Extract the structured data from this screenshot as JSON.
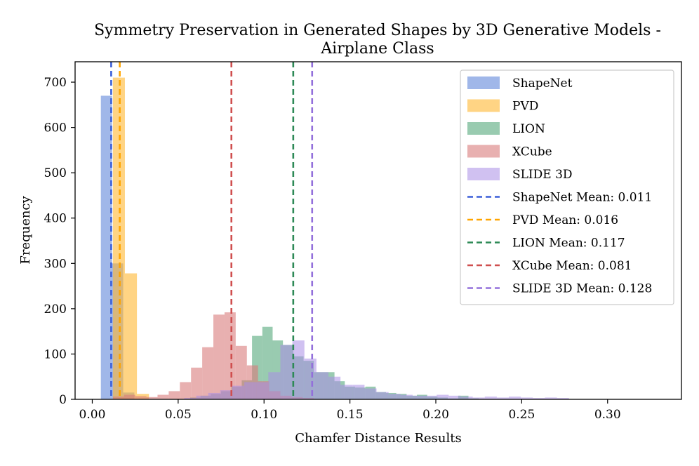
{
  "chart_data": {
    "type": "histogram",
    "title": "Symmetry Preservation in Generated Shapes by 3D Generative Models -",
    "title_line2": "Airplane Class",
    "xlabel": "Chamfer Distance Results",
    "ylabel": "Frequency",
    "xlim": [
      -0.01,
      0.343
    ],
    "ylim": [
      0,
      745
    ],
    "xticks": [
      0.0,
      0.05,
      0.1,
      0.15,
      0.2,
      0.25,
      0.3
    ],
    "xtick_labels": [
      "0.00",
      "0.05",
      "0.10",
      "0.15",
      "0.20",
      "0.25",
      "0.30"
    ],
    "yticks": [
      0,
      100,
      200,
      300,
      400,
      500,
      600,
      700
    ],
    "ytick_labels": [
      "0",
      "100",
      "200",
      "300",
      "400",
      "500",
      "600",
      "700"
    ],
    "legend_position": "top-right",
    "series": [
      {
        "name": "ShapeNet",
        "color": "#7b9be0",
        "alpha": 0.72,
        "bins": [
          {
            "x0": 0.005,
            "x1": 0.0115,
            "count": 670
          },
          {
            "x0": 0.0115,
            "x1": 0.018,
            "count": 300
          },
          {
            "x0": 0.018,
            "x1": 0.0245,
            "count": 15
          }
        ]
      },
      {
        "name": "PVD",
        "color": "#ffb732",
        "alpha": 0.6,
        "bins": [
          {
            "x0": 0.012,
            "x1": 0.019,
            "count": 710
          },
          {
            "x0": 0.019,
            "x1": 0.026,
            "count": 278
          },
          {
            "x0": 0.026,
            "x1": 0.033,
            "count": 12
          }
        ]
      },
      {
        "name": "LION",
        "color": "#45a170",
        "alpha": 0.55,
        "bins": [
          {
            "x0": 0.057,
            "x1": 0.063,
            "count": 4
          },
          {
            "x0": 0.063,
            "x1": 0.069,
            "count": 8
          },
          {
            "x0": 0.069,
            "x1": 0.075,
            "count": 12
          },
          {
            "x0": 0.075,
            "x1": 0.081,
            "count": 18
          },
          {
            "x0": 0.081,
            "x1": 0.087,
            "count": 28
          },
          {
            "x0": 0.087,
            "x1": 0.093,
            "count": 42
          },
          {
            "x0": 0.093,
            "x1": 0.099,
            "count": 140
          },
          {
            "x0": 0.099,
            "x1": 0.105,
            "count": 160
          },
          {
            "x0": 0.105,
            "x1": 0.111,
            "count": 130
          },
          {
            "x0": 0.111,
            "x1": 0.117,
            "count": 120
          },
          {
            "x0": 0.117,
            "x1": 0.123,
            "count": 95
          },
          {
            "x0": 0.123,
            "x1": 0.129,
            "count": 85
          },
          {
            "x0": 0.129,
            "x1": 0.135,
            "count": 60
          },
          {
            "x0": 0.135,
            "x1": 0.141,
            "count": 60
          },
          {
            "x0": 0.141,
            "x1": 0.147,
            "count": 40
          },
          {
            "x0": 0.147,
            "x1": 0.153,
            "count": 28
          },
          {
            "x0": 0.153,
            "x1": 0.159,
            "count": 26
          },
          {
            "x0": 0.159,
            "x1": 0.165,
            "count": 28
          },
          {
            "x0": 0.165,
            "x1": 0.171,
            "count": 16
          },
          {
            "x0": 0.171,
            "x1": 0.177,
            "count": 14
          },
          {
            "x0": 0.177,
            "x1": 0.183,
            "count": 12
          },
          {
            "x0": 0.183,
            "x1": 0.189,
            "count": 8
          },
          {
            "x0": 0.189,
            "x1": 0.195,
            "count": 10
          },
          {
            "x0": 0.195,
            "x1": 0.201,
            "count": 6
          },
          {
            "x0": 0.201,
            "x1": 0.207,
            "count": 4
          },
          {
            "x0": 0.207,
            "x1": 0.213,
            "count": 2
          },
          {
            "x0": 0.213,
            "x1": 0.219,
            "count": 8
          },
          {
            "x0": 0.219,
            "x1": 0.225,
            "count": 2
          }
        ]
      },
      {
        "name": "XCube",
        "color": "#d97c7c",
        "alpha": 0.6,
        "bins": [
          {
            "x0": 0.012,
            "x1": 0.0185,
            "count": 6
          },
          {
            "x0": 0.0185,
            "x1": 0.025,
            "count": 10
          },
          {
            "x0": 0.025,
            "x1": 0.0315,
            "count": 7
          },
          {
            "x0": 0.0315,
            "x1": 0.038,
            "count": 5
          },
          {
            "x0": 0.038,
            "x1": 0.0445,
            "count": 10
          },
          {
            "x0": 0.0445,
            "x1": 0.051,
            "count": 18
          },
          {
            "x0": 0.051,
            "x1": 0.0575,
            "count": 38
          },
          {
            "x0": 0.0575,
            "x1": 0.064,
            "count": 70
          },
          {
            "x0": 0.064,
            "x1": 0.0705,
            "count": 115
          },
          {
            "x0": 0.0705,
            "x1": 0.077,
            "count": 187
          },
          {
            "x0": 0.077,
            "x1": 0.0835,
            "count": 192
          },
          {
            "x0": 0.0835,
            "x1": 0.09,
            "count": 118
          },
          {
            "x0": 0.09,
            "x1": 0.0965,
            "count": 75
          },
          {
            "x0": 0.0965,
            "x1": 0.103,
            "count": 40
          },
          {
            "x0": 0.103,
            "x1": 0.1095,
            "count": 18
          },
          {
            "x0": 0.1095,
            "x1": 0.116,
            "count": 8
          },
          {
            "x0": 0.116,
            "x1": 0.1225,
            "count": 5
          },
          {
            "x0": 0.1225,
            "x1": 0.129,
            "count": 3
          }
        ]
      },
      {
        "name": "SLIDE 3D",
        "color": "#a98ee6",
        "alpha": 0.55,
        "bins": [
          {
            "x0": 0.0535,
            "x1": 0.0605,
            "count": 3
          },
          {
            "x0": 0.0605,
            "x1": 0.0675,
            "count": 8
          },
          {
            "x0": 0.0675,
            "x1": 0.0745,
            "count": 14
          },
          {
            "x0": 0.0745,
            "x1": 0.0815,
            "count": 20
          },
          {
            "x0": 0.0815,
            "x1": 0.0885,
            "count": 30
          },
          {
            "x0": 0.0885,
            "x1": 0.0955,
            "count": 38
          },
          {
            "x0": 0.0955,
            "x1": 0.1025,
            "count": 38
          },
          {
            "x0": 0.1025,
            "x1": 0.1095,
            "count": 60
          },
          {
            "x0": 0.1095,
            "x1": 0.1165,
            "count": 120
          },
          {
            "x0": 0.1165,
            "x1": 0.1235,
            "count": 130
          },
          {
            "x0": 0.1235,
            "x1": 0.1305,
            "count": 90
          },
          {
            "x0": 0.1305,
            "x1": 0.1375,
            "count": 60
          },
          {
            "x0": 0.1375,
            "x1": 0.1445,
            "count": 50
          },
          {
            "x0": 0.1445,
            "x1": 0.1515,
            "count": 32
          },
          {
            "x0": 0.1515,
            "x1": 0.1585,
            "count": 32
          },
          {
            "x0": 0.1585,
            "x1": 0.1655,
            "count": 24
          },
          {
            "x0": 0.1655,
            "x1": 0.1725,
            "count": 16
          },
          {
            "x0": 0.1725,
            "x1": 0.1795,
            "count": 12
          },
          {
            "x0": 0.1795,
            "x1": 0.1865,
            "count": 10
          },
          {
            "x0": 0.1865,
            "x1": 0.1935,
            "count": 8
          },
          {
            "x0": 0.1935,
            "x1": 0.2005,
            "count": 8
          },
          {
            "x0": 0.2005,
            "x1": 0.2075,
            "count": 10
          },
          {
            "x0": 0.2075,
            "x1": 0.2145,
            "count": 8
          },
          {
            "x0": 0.2145,
            "x1": 0.2215,
            "count": 6
          },
          {
            "x0": 0.2215,
            "x1": 0.2285,
            "count": 4
          },
          {
            "x0": 0.2285,
            "x1": 0.2355,
            "count": 6
          },
          {
            "x0": 0.2355,
            "x1": 0.2425,
            "count": 4
          },
          {
            "x0": 0.2425,
            "x1": 0.2495,
            "count": 6
          },
          {
            "x0": 0.2495,
            "x1": 0.2565,
            "count": 4
          },
          {
            "x0": 0.2565,
            "x1": 0.2635,
            "count": 3
          },
          {
            "x0": 0.2635,
            "x1": 0.2705,
            "count": 4
          },
          {
            "x0": 0.2705,
            "x1": 0.2775,
            "count": 3
          }
        ]
      }
    ],
    "mean_lines": [
      {
        "name": "ShapeNet Mean: 0.011",
        "value": 0.011,
        "color": "#3b5fd9"
      },
      {
        "name": "PVD Mean: 0.016",
        "value": 0.016,
        "color": "#ffa500"
      },
      {
        "name": "LION Mean: 0.117",
        "value": 0.117,
        "color": "#2e8a57"
      },
      {
        "name": "XCube Mean: 0.081",
        "value": 0.081,
        "color": "#cf4f4f"
      },
      {
        "name": "SLIDE 3D Mean: 0.128",
        "value": 0.128,
        "color": "#9370db"
      }
    ]
  }
}
